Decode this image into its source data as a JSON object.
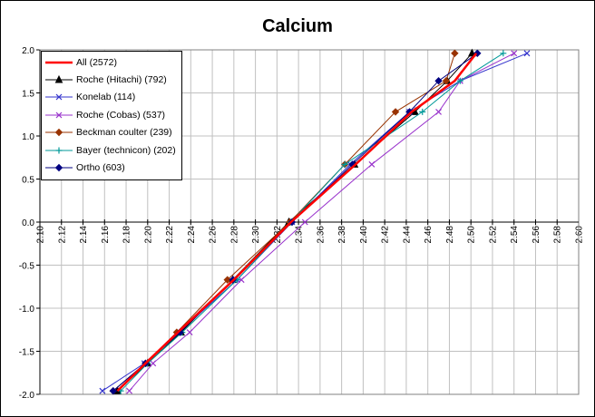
{
  "chart_data": {
    "type": "line",
    "title": "Calcium",
    "xlabel": "",
    "ylabel": "",
    "xlim": [
      2.1,
      2.6
    ],
    "ylim": [
      -2.0,
      2.0
    ],
    "x_ticks": [
      "2.10",
      "2.12",
      "2.14",
      "2.16",
      "2.18",
      "2.20",
      "2.22",
      "2.24",
      "2.26",
      "2.28",
      "2.30",
      "2.32",
      "2.34",
      "2.36",
      "2.38",
      "2.40",
      "2.42",
      "2.44",
      "2.46",
      "2.48",
      "2.50",
      "2.52",
      "2.54",
      "2.56",
      "2.58",
      "2.60"
    ],
    "y_ticks": [
      "-2.0",
      "-1.5",
      "-1.0",
      "-0.5",
      "0.0",
      "0.5",
      "1.0",
      "1.5",
      "2.0"
    ],
    "grid": true,
    "legend_position": "top-left",
    "series": [
      {
        "name": "All (2572)",
        "color": "#ff0000",
        "marker": "none",
        "x": [
          2.172,
          2.198,
          2.228,
          2.28,
          2.333,
          2.393,
          2.445,
          2.485,
          2.505
        ],
        "y": [
          -1.96,
          -1.64,
          -1.28,
          -0.67,
          0.0,
          0.67,
          1.28,
          1.64,
          1.96
        ]
      },
      {
        "name": "Roche (Hitachi) (792)",
        "color": "#000000",
        "marker": "triangle",
        "x": [
          2.172,
          2.2,
          2.231,
          2.279,
          2.331,
          2.392,
          2.448,
          2.478,
          2.501
        ],
        "y": [
          -1.96,
          -1.64,
          -1.28,
          -0.67,
          0.0,
          0.67,
          1.28,
          1.64,
          1.96
        ]
      },
      {
        "name": "Konelab (114)",
        "color": "#3333cc",
        "marker": "x",
        "x": [
          2.158,
          2.197,
          2.229,
          2.283,
          2.334,
          2.388,
          2.443,
          2.49,
          2.552
        ],
        "y": [
          -1.96,
          -1.64,
          -1.28,
          -0.67,
          0.0,
          0.67,
          1.28,
          1.64,
          1.96
        ]
      },
      {
        "name": "Roche (Cobas) (537)",
        "color": "#9933cc",
        "marker": "x",
        "x": [
          2.183,
          2.205,
          2.239,
          2.287,
          2.346,
          2.408,
          2.47,
          2.49,
          2.54
        ],
        "y": [
          -1.96,
          -1.64,
          -1.28,
          -0.67,
          0.0,
          0.67,
          1.28,
          1.64,
          1.96
        ]
      },
      {
        "name": "Beckman coulter (239)",
        "color": "#993300",
        "marker": "diamond",
        "x": [
          2.168,
          2.198,
          2.227,
          2.274,
          2.332,
          2.383,
          2.43,
          2.477,
          2.485
        ],
        "y": [
          -1.96,
          -1.64,
          -1.28,
          -0.67,
          0.0,
          0.67,
          1.28,
          1.64,
          1.96
        ]
      },
      {
        "name": "Bayer (technicon) (202)",
        "color": "#009999",
        "marker": "plus",
        "x": [
          2.175,
          2.2,
          2.232,
          2.283,
          2.333,
          2.383,
          2.455,
          2.49,
          2.53
        ],
        "y": [
          -1.96,
          -1.64,
          -1.28,
          -0.67,
          0.0,
          0.67,
          1.28,
          1.64,
          1.96
        ]
      },
      {
        "name": "Ortho (603)",
        "color": "#000080",
        "marker": "diamond",
        "x": [
          2.168,
          2.198,
          2.23,
          2.279,
          2.334,
          2.39,
          2.443,
          2.47,
          2.506
        ],
        "y": [
          -1.96,
          -1.64,
          -1.28,
          -0.67,
          0.0,
          0.67,
          1.28,
          1.64,
          1.96
        ]
      }
    ]
  }
}
